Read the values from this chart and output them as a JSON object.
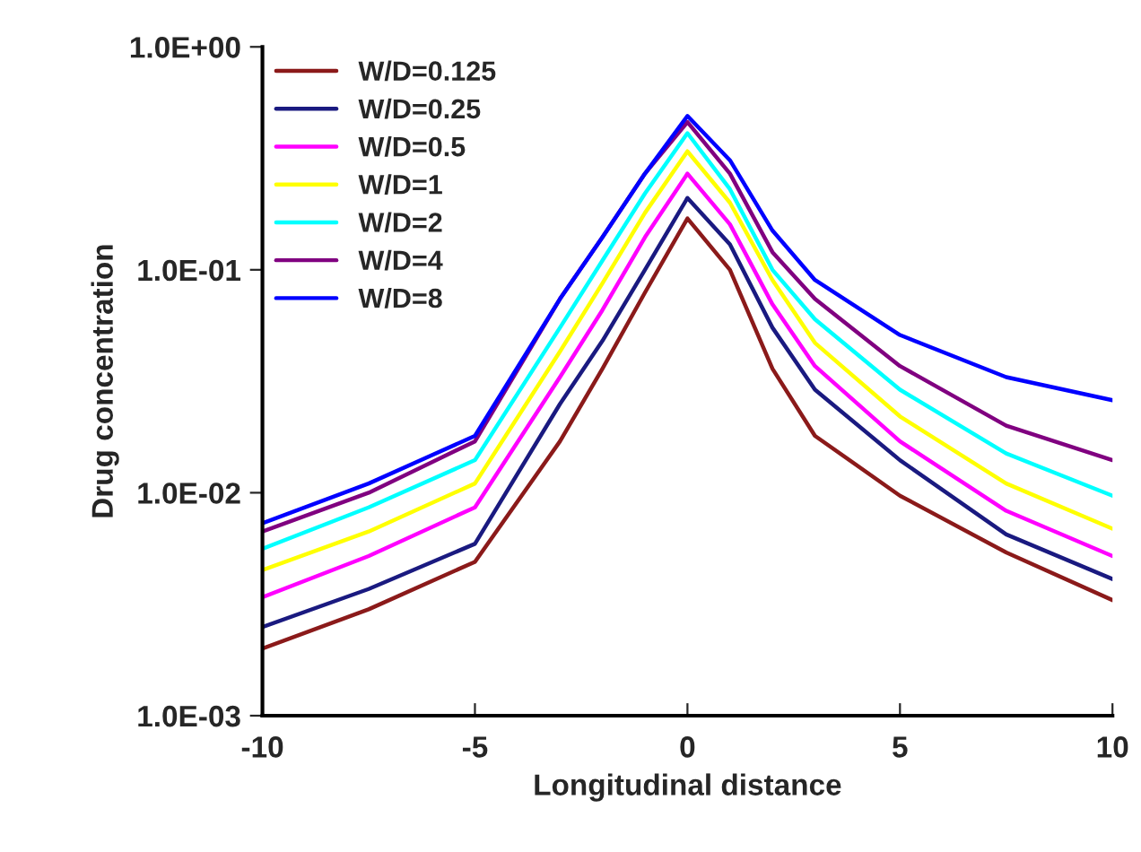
{
  "chart_data": {
    "type": "line",
    "xlabel": "Longitudinal distance",
    "ylabel": "Drug concentration",
    "x": [
      -10,
      -7.5,
      -5,
      -3,
      -2,
      -1,
      0,
      1,
      2,
      3,
      5,
      7.5,
      10
    ],
    "series": [
      {
        "name": "W/D=0.125",
        "color": "#8b1a1a",
        "values": [
          0.002,
          0.003,
          0.0049,
          0.017,
          0.036,
          0.079,
          0.17,
          0.1,
          0.036,
          0.018,
          0.0097,
          0.0054,
          0.0033
        ]
      },
      {
        "name": "W/D=0.25",
        "color": "#1a1a80",
        "values": [
          0.0025,
          0.0037,
          0.0059,
          0.025,
          0.048,
          0.1,
          0.21,
          0.13,
          0.055,
          0.029,
          0.014,
          0.0065,
          0.0041
        ]
      },
      {
        "name": "W/D=0.5",
        "color": "#ff00ff",
        "values": [
          0.0034,
          0.0052,
          0.0086,
          0.033,
          0.066,
          0.14,
          0.27,
          0.16,
          0.07,
          0.037,
          0.017,
          0.0083,
          0.0052
        ]
      },
      {
        "name": "W/D=1",
        "color": "#ffff00",
        "values": [
          0.0045,
          0.0067,
          0.011,
          0.043,
          0.087,
          0.18,
          0.34,
          0.2,
          0.09,
          0.047,
          0.022,
          0.011,
          0.0069
        ]
      },
      {
        "name": "W/D=2",
        "color": "#00ffff",
        "values": [
          0.0056,
          0.0086,
          0.014,
          0.055,
          0.11,
          0.22,
          0.41,
          0.23,
          0.1,
          0.06,
          0.029,
          0.015,
          0.0097
        ]
      },
      {
        "name": "W/D=4",
        "color": "#800080",
        "values": [
          0.0067,
          0.01,
          0.017,
          0.074,
          0.14,
          0.27,
          0.46,
          0.27,
          0.12,
          0.074,
          0.037,
          0.02,
          0.014
        ]
      },
      {
        "name": "W/D=8",
        "color": "#0000ff",
        "values": [
          0.0073,
          0.011,
          0.018,
          0.074,
          0.14,
          0.27,
          0.49,
          0.31,
          0.15,
          0.09,
          0.051,
          0.033,
          0.026
        ]
      }
    ],
    "log": "y",
    "xlim": [
      -10,
      10
    ],
    "xticks": [
      -10,
      -5,
      0,
      5,
      10
    ],
    "ylim": [
      0.001,
      1
    ],
    "yticks": [
      {
        "value": 0.001,
        "label": "1.0E-03"
      },
      {
        "value": 0.01,
        "label": "1.0E-02"
      },
      {
        "value": 0.1,
        "label": "1.0E-01"
      },
      {
        "value": 1,
        "label": "1.0E+00"
      }
    ],
    "legend": "top left",
    "grid": false,
    "marker": "none",
    "line_style": "solid"
  }
}
